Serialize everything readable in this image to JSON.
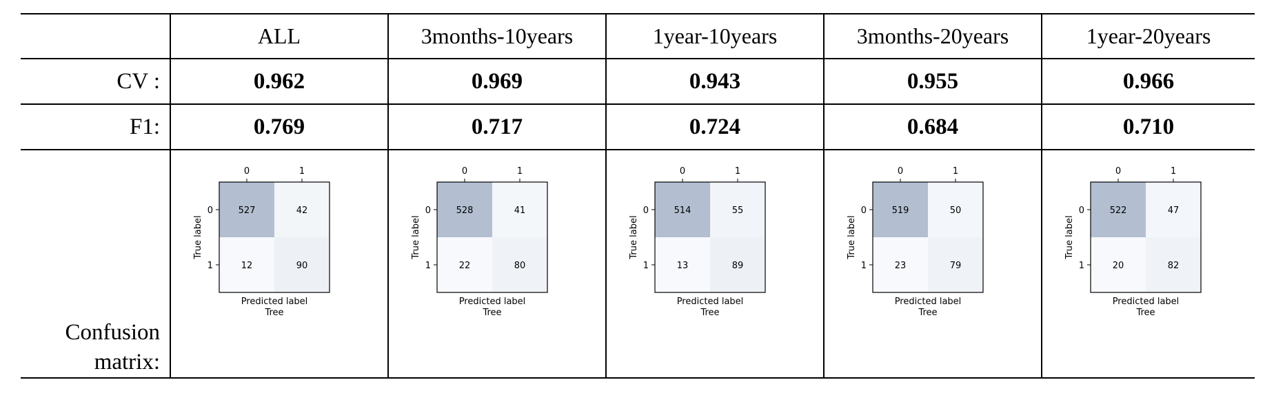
{
  "table": {
    "columns": [
      "ALL",
      "3months-10years",
      "1year-10years",
      "3months-20years",
      "1year-20years"
    ],
    "row_labels": {
      "cv": "CV :",
      "f1": "F1:",
      "confusion_line1": "Confusion",
      "confusion_line2": "matrix:"
    },
    "cv": [
      "0.962",
      "0.969",
      "0.943",
      "0.955",
      "0.966"
    ],
    "f1": [
      "0.769",
      "0.717",
      "0.724",
      "0.684",
      "0.710"
    ]
  },
  "chart_data": [
    {
      "type": "heatmap",
      "title": "Tree",
      "xlabel": "Predicted label",
      "ylabel": "True label",
      "x_ticks": [
        "0",
        "1"
      ],
      "y_ticks": [
        "0",
        "1"
      ],
      "matrix": [
        [
          527,
          42
        ],
        [
          12,
          90
        ]
      ]
    },
    {
      "type": "heatmap",
      "title": "Tree",
      "xlabel": "Predicted label",
      "ylabel": "True label",
      "x_ticks": [
        "0",
        "1"
      ],
      "y_ticks": [
        "0",
        "1"
      ],
      "matrix": [
        [
          528,
          41
        ],
        [
          22,
          80
        ]
      ]
    },
    {
      "type": "heatmap",
      "title": "Tree",
      "xlabel": "Predicted label",
      "ylabel": "True label",
      "x_ticks": [
        "0",
        "1"
      ],
      "y_ticks": [
        "0",
        "1"
      ],
      "matrix": [
        [
          514,
          55
        ],
        [
          13,
          89
        ]
      ]
    },
    {
      "type": "heatmap",
      "title": "Tree",
      "xlabel": "Predicted label",
      "ylabel": "True label",
      "x_ticks": [
        "0",
        "1"
      ],
      "y_ticks": [
        "0",
        "1"
      ],
      "matrix": [
        [
          519,
          50
        ],
        [
          23,
          79
        ]
      ]
    },
    {
      "type": "heatmap",
      "title": "Tree",
      "xlabel": "Predicted label",
      "ylabel": "True label",
      "x_ticks": [
        "0",
        "1"
      ],
      "y_ticks": [
        "0",
        "1"
      ],
      "matrix": [
        [
          522,
          47
        ],
        [
          20,
          82
        ]
      ]
    }
  ],
  "colors": {
    "heat_high": "#b3bfd1",
    "heat_low": "#f7f9fc"
  }
}
